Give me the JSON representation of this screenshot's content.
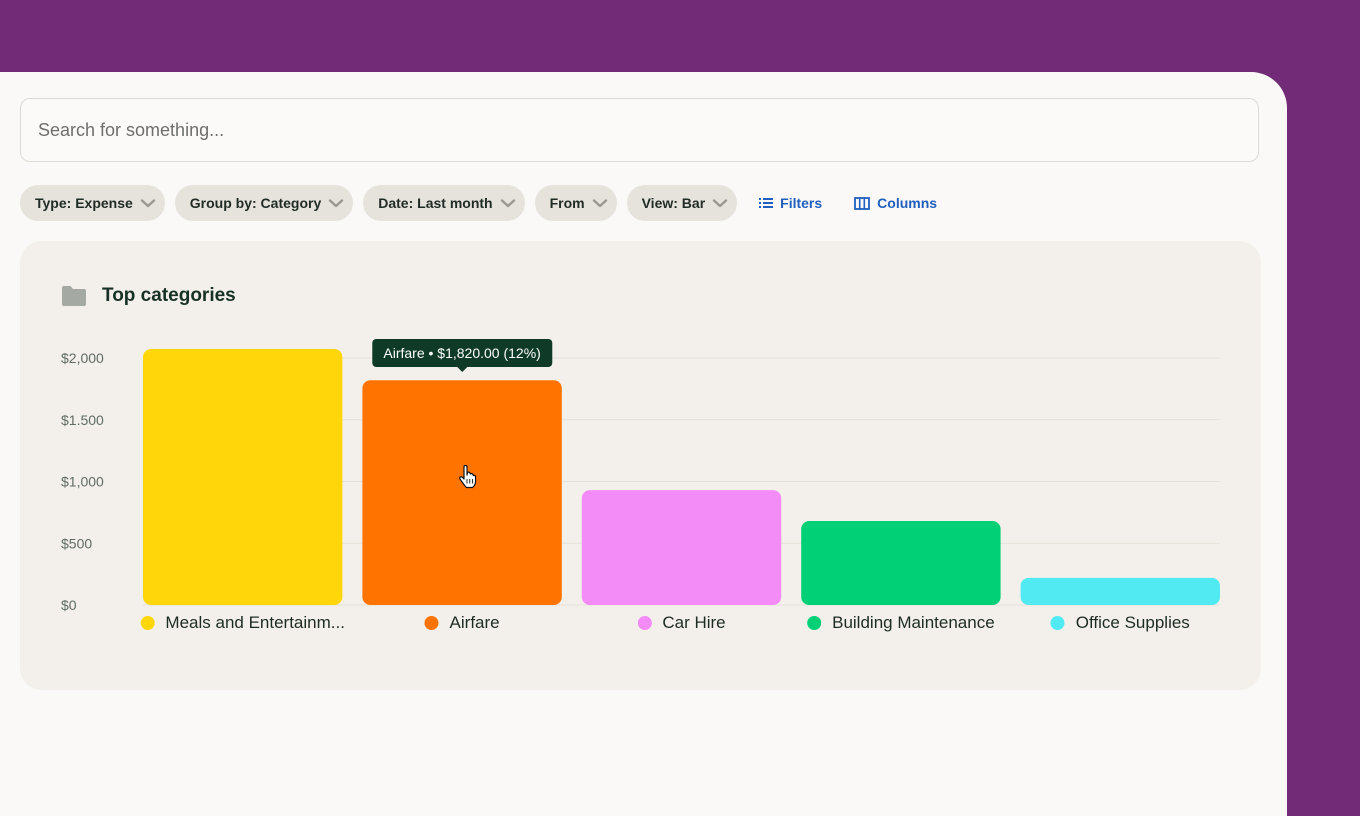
{
  "search": {
    "placeholder": "Search for something..."
  },
  "filters": [
    {
      "label": "Type: Expense"
    },
    {
      "label": "Group by: Category"
    },
    {
      "label": "Date: Last month"
    },
    {
      "label": "From"
    },
    {
      "label": "View: Bar"
    }
  ],
  "actions": {
    "filters_label": "Filters",
    "columns_label": "Columns"
  },
  "card": {
    "title": "Top categories",
    "icon": "folder-icon"
  },
  "tooltip": {
    "text": "Airfare • $1,820.00 (12%)"
  },
  "colors": {
    "background": "#722B77",
    "accent_link": "#1F5FBF",
    "tooltip_bg": "#0E3A27"
  },
  "chart_data": {
    "type": "bar",
    "categories": [
      "Meals and Entertainm...",
      "Airfare",
      "Car Hire",
      "Building Maintenance",
      "Office Supplies"
    ],
    "values": [
      2150,
      1820,
      930,
      680,
      220
    ],
    "colors": [
      "#FFD60A",
      "#FF7300",
      "#F38CF7",
      "#02D077",
      "#52EAF2"
    ],
    "yticks": [
      0,
      500,
      1000,
      1500,
      2000
    ],
    "ytick_labels": [
      "$0",
      "$500",
      "$1,000",
      "$1.500",
      "$2,000"
    ],
    "ylim": [
      0,
      2000
    ],
    "grid": true,
    "legend": "bottom",
    "highlighted_index": 1
  }
}
